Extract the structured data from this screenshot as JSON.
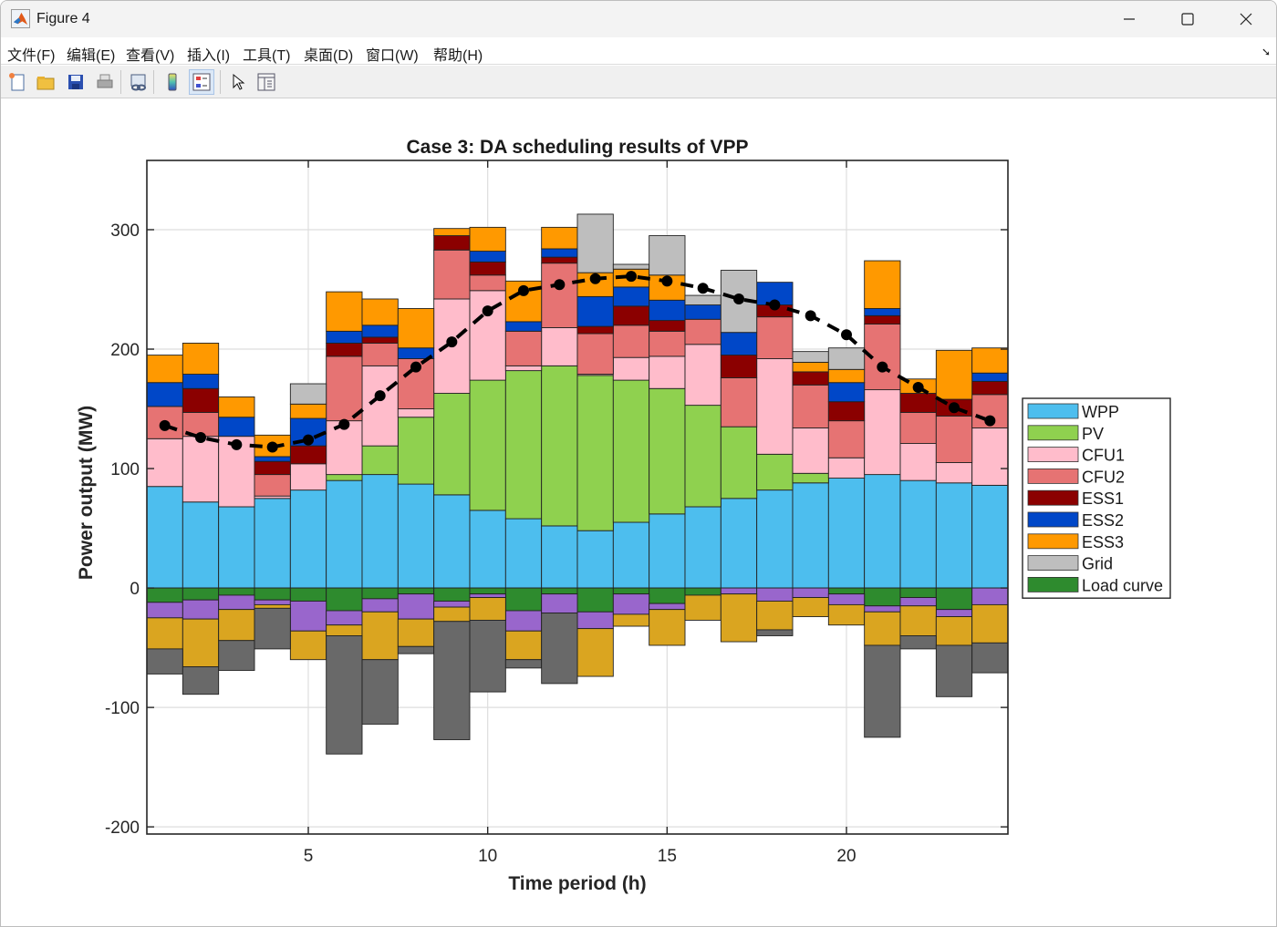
{
  "window": {
    "title": "Figure 4",
    "controls": [
      "minimize",
      "maximize",
      "close"
    ]
  },
  "menu": {
    "items": [
      "文件(F)",
      "编辑(E)",
      "查看(V)",
      "插入(I)",
      "工具(T)",
      "桌面(D)",
      "窗口(W)",
      "帮助(H)"
    ]
  },
  "toolbar": {
    "buttons": [
      {
        "icon": "new-figure-icon"
      },
      {
        "icon": "open-file-icon"
      },
      {
        "icon": "save-icon"
      },
      {
        "icon": "print-icon"
      },
      {
        "icon": "link-plot-icon"
      },
      {
        "icon": "colorbar-icon"
      },
      {
        "icon": "legend-icon",
        "active": true
      },
      {
        "icon": "pointer-icon"
      },
      {
        "icon": "property-inspector-icon"
      }
    ]
  },
  "chart_data": {
    "type": "bar",
    "stacked": true,
    "title": "Case 3: DA scheduling results of VPP",
    "xlabel": "Time period (h)",
    "ylabel": "Power output (MW)",
    "xlim": [
      0.5,
      24.5
    ],
    "ylim": [
      -206,
      358
    ],
    "xticks": [
      5,
      10,
      15,
      20
    ],
    "yticks": [
      -200,
      -100,
      0,
      100,
      200,
      300
    ],
    "grid": true,
    "legend_position": "outside-right",
    "categories": [
      1,
      2,
      3,
      4,
      5,
      6,
      7,
      8,
      9,
      10,
      11,
      12,
      13,
      14,
      15,
      16,
      17,
      18,
      19,
      20,
      21,
      22,
      23,
      24
    ],
    "series": [
      {
        "name": "WPP",
        "color": "#4DBEEE",
        "values": [
          85,
          72,
          68,
          75,
          82,
          90,
          95,
          87,
          78,
          65,
          58,
          52,
          48,
          55,
          62,
          68,
          75,
          82,
          88,
          92,
          95,
          90,
          88,
          86
        ]
      },
      {
        "name": "PV",
        "color": "#8FD14F",
        "values": [
          0,
          0,
          0,
          0,
          0,
          5,
          24,
          56,
          85,
          109,
          124,
          134,
          130,
          119,
          105,
          85,
          60,
          30,
          8,
          0,
          0,
          0,
          0,
          0
        ]
      },
      {
        "name": "CFU1",
        "color": "#FFBCCB",
        "values": [
          40,
          55,
          59,
          2,
          22,
          45,
          67,
          7,
          79,
          75,
          4,
          32,
          1,
          19,
          27,
          51,
          0,
          80,
          38,
          17,
          71,
          31,
          17,
          48
        ]
      },
      {
        "name": "CFU2",
        "color": "#E67373",
        "values": [
          27,
          20,
          0,
          18,
          0,
          54,
          19,
          42,
          41,
          13,
          29,
          54,
          34,
          27,
          21,
          21,
          41,
          35,
          36,
          31,
          55,
          26,
          39,
          28
        ]
      },
      {
        "name": "ESS1",
        "color": "#8B0000",
        "values": [
          0,
          20,
          0,
          11,
          15,
          11,
          5,
          0,
          12,
          11,
          0,
          5,
          6,
          16,
          9,
          0,
          19,
          10,
          11,
          16,
          7,
          16,
          14,
          11
        ]
      },
      {
        "name": "ESS2",
        "color": "#0047C8",
        "values": [
          20,
          12,
          16,
          4,
          23,
          10,
          10,
          9,
          0,
          9,
          8,
          7,
          25,
          16,
          17,
          12,
          19,
          19,
          0,
          16,
          6,
          0,
          0,
          7
        ]
      },
      {
        "name": "ESS3",
        "color": "#FF9900",
        "values": [
          23,
          26,
          17,
          18,
          12,
          33,
          22,
          33,
          6,
          20,
          34,
          18,
          20,
          15,
          21,
          0,
          0,
          0,
          8,
          11,
          40,
          12,
          41,
          21
        ]
      },
      {
        "name": "Grid",
        "color": "#BEBEBE",
        "values": [
          0,
          0,
          0,
          0,
          17,
          0,
          0,
          0,
          0,
          0,
          0,
          0,
          49,
          4,
          33,
          8,
          52,
          0,
          9,
          18,
          0,
          0,
          0,
          0
        ]
      },
      {
        "name": "Load curve",
        "color": "#2E8B2E",
        "values": [
          -12,
          -10,
          -6,
          -10,
          -11,
          -19,
          -9,
          -5,
          -11,
          -5,
          -19,
          -5,
          -20,
          -5,
          -13,
          -6,
          0,
          0,
          0,
          -5,
          -15,
          -8,
          -18,
          0
        ]
      },
      {
        "name": "",
        "color": "#9966CC",
        "values": [
          -13,
          -16,
          -12,
          -4,
          -25,
          -12,
          -11,
          -21,
          -5,
          -3,
          -17,
          -16,
          -14,
          -17,
          -5,
          0,
          -5,
          -11,
          -8,
          -9,
          -5,
          -7,
          -6,
          -14
        ]
      },
      {
        "name": "",
        "color": "#DAA520",
        "values": [
          -26,
          -40,
          -26,
          -3,
          -24,
          -9,
          -40,
          -23,
          -12,
          -19,
          -24,
          0,
          -40,
          -10,
          -30,
          -21,
          -40,
          -24,
          -16,
          -17,
          -28,
          -25,
          -24,
          -32
        ]
      },
      {
        "name": "",
        "color": "#696969",
        "values": [
          -21,
          -23,
          -25,
          -34,
          0,
          -99,
          -54,
          -6,
          -99,
          -60,
          -7,
          -59,
          0,
          0,
          0,
          0,
          0,
          -5,
          0,
          0,
          -77,
          -11,
          -43,
          -25
        ]
      }
    ],
    "load_line": {
      "style": "dashed",
      "marker": "circle",
      "color": "#000000",
      "values": [
        136,
        126,
        120,
        118,
        124,
        137,
        161,
        185,
        206,
        232,
        249,
        254,
        259,
        261,
        257,
        251,
        242,
        237,
        228,
        212,
        185,
        168,
        151,
        140
      ]
    }
  }
}
